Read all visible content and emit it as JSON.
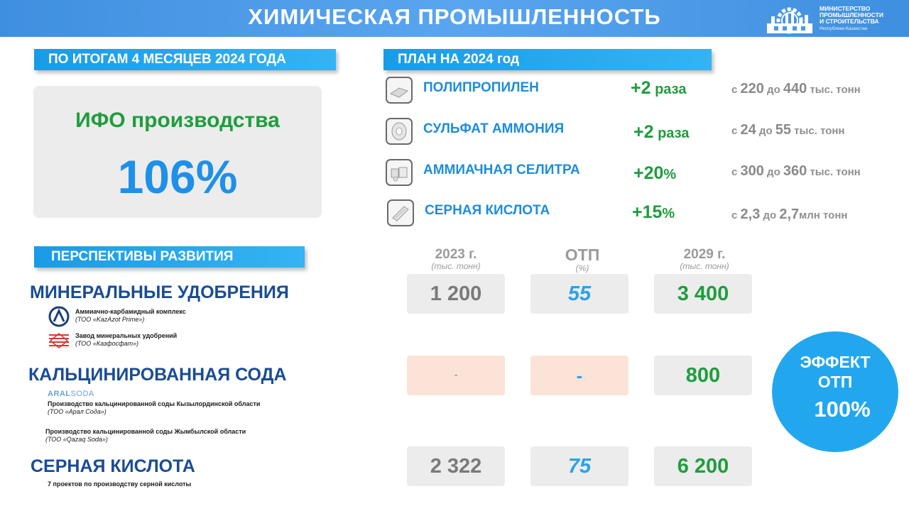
{
  "header": {
    "title": "ХИМИЧЕСКАЯ ПРОМЫШЛЕННОСТЬ"
  },
  "logo": {
    "line1": "МИНИСТЕРСТВО",
    "line2": "ПРОМЫШЛЕННОСТИ",
    "line3": "И СТРОИТЕЛЬСТВА",
    "subtitle": "Республики Казахстан"
  },
  "results": {
    "heading": "ПО ИТОГАМ 4 МЕСЯЦЕВ 2024 ГОДА",
    "ifo_label": "ИФО производства",
    "ifo_value": "106%"
  },
  "plan": {
    "heading": "ПЛАН НА 2024 год",
    "items": [
      {
        "icon": "polypropylene-icon",
        "name": "ПОЛИПРОПИЛЕН",
        "mult": "+2",
        "mult_suffix": " раза",
        "r_from_word": "с ",
        "r_from": "220",
        "r_to_word": " до ",
        "r_to": "440",
        "r_unit": " тыс. тонн"
      },
      {
        "icon": "ammonium-sulfate-icon",
        "name": "СУЛЬФАТ АММОНИЯ",
        "mult": "+2",
        "mult_suffix": " раза",
        "r_from_word": "с ",
        "r_from": "24",
        "r_to_word": " до ",
        "r_to": "55",
        "r_unit": " тыс. тонн"
      },
      {
        "icon": "ammonium-nitrate-icon",
        "name": "АММИАЧНАЯ СЕЛИТРА",
        "mult": "+20",
        "mult_suffix": "%",
        "r_from_word": "с ",
        "r_from": "300",
        "r_to_word": " до ",
        "r_to": "360",
        "r_unit": " тыс. тонн"
      },
      {
        "icon": "sulfuric-acid-icon",
        "name": "СЕРНАЯ КИСЛОТА",
        "mult": "+15",
        "mult_suffix": "%",
        "r_from_word": "с ",
        "r_from": "2,3",
        "r_to_word": " до ",
        "r_to": "2,7",
        "r_unit": "млн тонн"
      }
    ]
  },
  "perspectives": {
    "heading": "ПЕРСПЕКТИВЫ РАЗВИТИЯ",
    "columns": [
      {
        "title": "2023 г.",
        "unit": "(тыс. тонн)"
      },
      {
        "title": "ОТП",
        "unit": "(%)"
      },
      {
        "title": "2029 г.",
        "unit": "(тыс. тонн)"
      }
    ],
    "mineral": {
      "title": "МИНЕРАЛЬНЫЕ УДОБРЕНИЯ",
      "v2023": "1 200",
      "otp": "55",
      "v2029": "3 400",
      "c1_name": "Аммиачно-карбамидный комплекс",
      "c1_org": "(ТОО «KazAzot Prime»)",
      "c2_name": "Завод минеральных удобрений",
      "c2_org": "(ТОО «Казфосфат»)"
    },
    "soda": {
      "title": "КАЛЬЦИНИРОВАННАЯ СОДА",
      "v2023": "-",
      "otp": "-",
      "v2029": "800",
      "brand_a": "ARAL",
      "brand_b": "SODA",
      "c1_name": "Производство кальцинированной соды Кызылординской области",
      "c1_org": "(ТОО «Арал Сода»)",
      "c2_name": "Производство кальцинированной соды Жымбылской области",
      "c2_org": "(ТОО «Qazaq Soda»)"
    },
    "acid": {
      "title": "СЕРНАЯ КИСЛОТА",
      "v2023": "2 322",
      "otp": "75",
      "v2029": "6 200",
      "note": "7 проектов по производству серной кислоты"
    }
  },
  "effect": {
    "line1": "ЭФФЕКТ",
    "line2": "ОТП",
    "value": "100%"
  },
  "colors": {
    "accent": "#1a9be6",
    "green": "#1f9d3e",
    "navy": "#1a4c94"
  }
}
